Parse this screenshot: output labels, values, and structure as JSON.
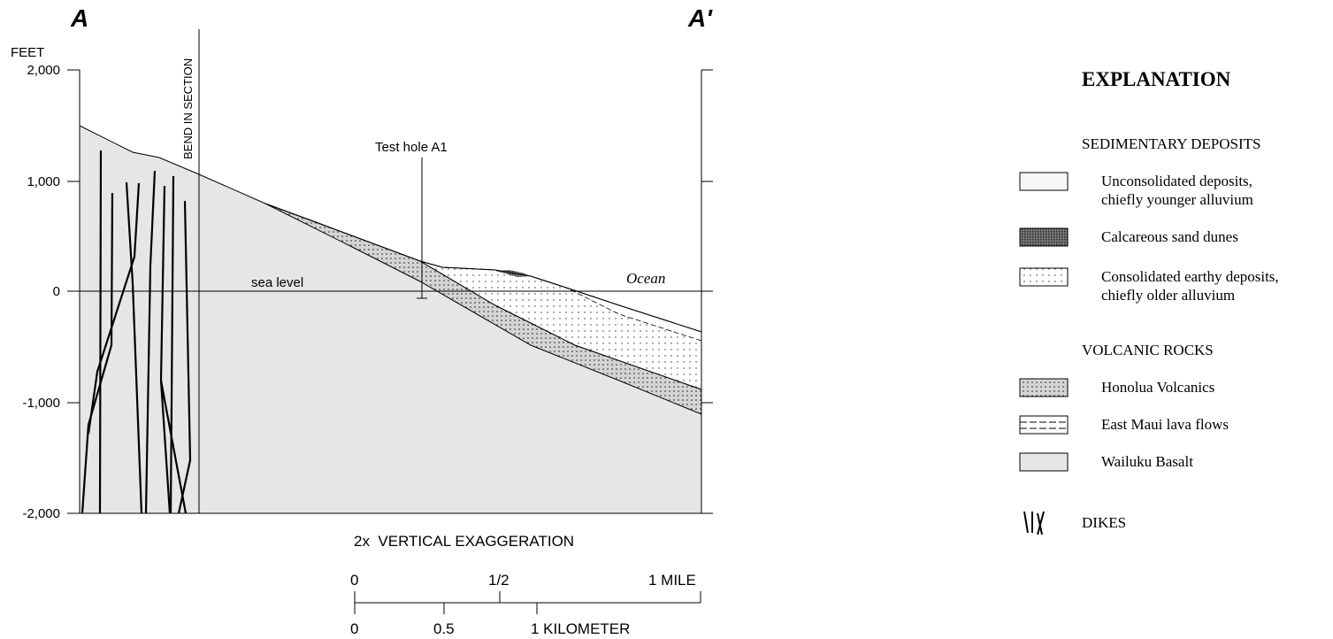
{
  "section": {
    "left_label": "A",
    "right_label": "A'",
    "unit": "FEET",
    "yticks": [
      "2,000",
      "1,000",
      "0",
      "-1,000",
      "-2,000"
    ],
    "bend": "BEND IN SECTION",
    "test_hole": "Test hole A1",
    "sea_level": "sea level",
    "ocean": "Ocean",
    "exaggeration": "2x  VERTICAL EXAGGERATION"
  },
  "scale_bar": {
    "miles": [
      "0",
      "1/2",
      "1 MILE"
    ],
    "kilometers": [
      "0",
      "0.5",
      "1 KILOMETER"
    ]
  },
  "explanation": {
    "title": "EXPLANATION",
    "groups": [
      {
        "heading": "SEDIMENTARY DEPOSITS",
        "items": [
          {
            "label_lines": [
              "Unconsolidated deposits,",
              "chiefly younger alluvium"
            ]
          },
          {
            "label_lines": [
              "Calcareous sand dunes"
            ]
          },
          {
            "label_lines": [
              "Consolidated earthy deposits,",
              "chiefly older alluvium"
            ]
          }
        ]
      },
      {
        "heading": "VOLCANIC ROCKS",
        "items": [
          {
            "label_lines": [
              "Honolua Volcanics"
            ]
          },
          {
            "label_lines": [
              "East Maui lava flows"
            ]
          },
          {
            "label_lines": [
              "Wailuku Basalt"
            ]
          }
        ]
      }
    ],
    "dikes": "DIKES"
  }
}
